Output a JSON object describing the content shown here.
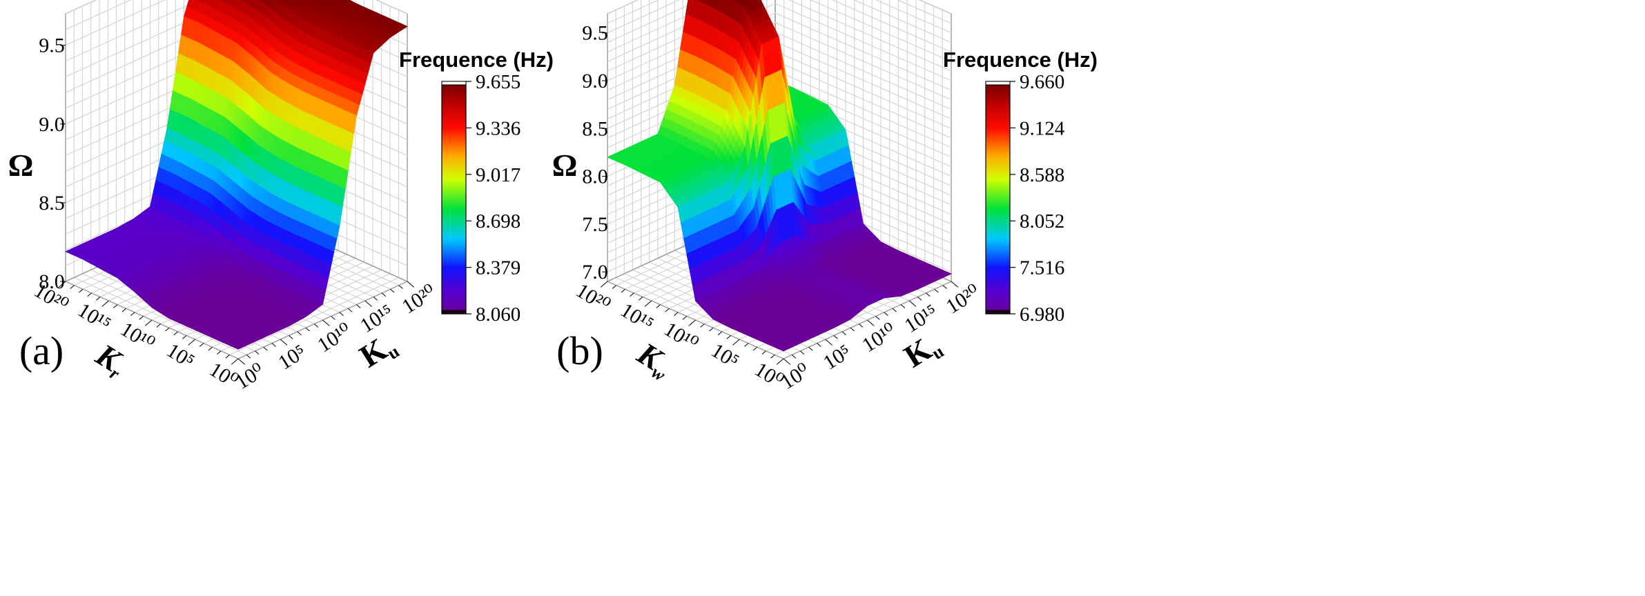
{
  "chart_data": [
    {
      "type": "surface3d",
      "panel_label": "(a)",
      "title": "",
      "colorbar": {
        "title": "Frequence (Hz)",
        "ticks": [
          "9.655",
          "9.336",
          "9.017",
          "8.698",
          "8.379",
          "8.060"
        ],
        "min": 8.06,
        "max": 9.655
      },
      "z_axis": {
        "label": "Ω",
        "ticks": [
          "9.5",
          "9.0",
          "8.5",
          "8.0"
        ],
        "range": [
          8.0,
          9.7
        ]
      },
      "left_axis": {
        "label": "K",
        "subscript": "r",
        "ticks": [
          "10²⁰",
          "10¹⁵",
          "10¹⁰",
          "10⁵",
          "10⁰"
        ]
      },
      "right_axis": {
        "label": "K",
        "subscript": "u",
        "ticks": [
          "10⁰",
          "10⁵",
          "10¹⁰",
          "10¹⁵",
          "10²⁰"
        ]
      },
      "log10_exponents": [
        0,
        2,
        4,
        6,
        8,
        10,
        12,
        14,
        16,
        18,
        20
      ],
      "z_rows_note": "rows = left-axis exponent 0..20, columns = right-axis exponent 0..20",
      "z": [
        [
          8.06,
          8.06,
          8.06,
          8.06,
          8.07,
          8.1,
          8.55,
          9.2,
          9.55,
          9.6,
          9.62
        ],
        [
          8.06,
          8.06,
          8.06,
          8.06,
          8.07,
          8.1,
          8.55,
          9.2,
          9.55,
          9.6,
          9.62
        ],
        [
          8.06,
          8.06,
          8.06,
          8.06,
          8.07,
          8.1,
          8.55,
          9.2,
          9.55,
          9.6,
          9.62
        ],
        [
          8.06,
          8.06,
          8.06,
          8.06,
          8.07,
          8.1,
          8.55,
          9.2,
          9.55,
          9.6,
          9.62
        ],
        [
          8.06,
          8.06,
          8.06,
          8.06,
          8.07,
          8.1,
          8.56,
          9.21,
          9.56,
          9.61,
          9.63
        ],
        [
          8.08,
          8.08,
          8.08,
          8.08,
          8.09,
          8.12,
          8.58,
          9.23,
          9.58,
          9.63,
          9.64
        ],
        [
          8.13,
          8.13,
          8.13,
          8.13,
          8.14,
          8.17,
          8.62,
          9.28,
          9.62,
          9.65,
          9.65
        ],
        [
          8.17,
          8.17,
          8.17,
          8.17,
          8.18,
          8.21,
          8.66,
          9.32,
          9.64,
          9.655,
          9.655
        ],
        [
          8.18,
          8.18,
          8.18,
          8.18,
          8.19,
          8.22,
          8.67,
          9.33,
          9.65,
          9.655,
          9.655
        ],
        [
          8.19,
          8.19,
          8.19,
          8.19,
          8.2,
          8.23,
          8.68,
          9.34,
          9.655,
          9.655,
          9.655
        ],
        [
          8.19,
          8.19,
          8.19,
          8.19,
          8.2,
          8.23,
          8.68,
          9.34,
          9.655,
          9.655,
          9.655
        ]
      ]
    },
    {
      "type": "surface3d",
      "panel_label": "(b)",
      "title": "",
      "colorbar": {
        "title": "Frequence (Hz)",
        "ticks": [
          "9.660",
          "9.124",
          "8.588",
          "8.052",
          "7.516",
          "6.980"
        ],
        "min": 6.98,
        "max": 9.66
      },
      "z_axis": {
        "label": "Ω",
        "ticks": [
          "9.5",
          "9.0",
          "8.5",
          "8.0",
          "7.5",
          "7.0"
        ],
        "range": [
          6.9,
          9.7
        ]
      },
      "left_axis": {
        "label": "K",
        "subscript": "w",
        "ticks": [
          "10²⁰",
          "10¹⁵",
          "10¹⁰",
          "10⁵",
          "10⁰"
        ]
      },
      "right_axis": {
        "label": "K",
        "subscript": "u",
        "ticks": [
          "10⁰",
          "10⁵",
          "10¹⁰",
          "10¹⁵",
          "10²⁰"
        ]
      },
      "log10_exponents": [
        0,
        2,
        4,
        6,
        8,
        10,
        12,
        14,
        16,
        18,
        20
      ],
      "z_rows_note": "rows = left-axis exponent 0..20, columns = right-axis exponent 0..20",
      "z": [
        [
          6.98,
          6.98,
          6.98,
          6.98,
          6.99,
          7.05,
          7.05,
          6.99,
          6.98,
          6.98,
          6.98
        ],
        [
          6.98,
          6.98,
          6.98,
          6.98,
          6.99,
          7.05,
          7.05,
          6.99,
          6.98,
          6.98,
          6.98
        ],
        [
          6.98,
          6.98,
          6.98,
          6.98,
          6.99,
          7.05,
          7.05,
          6.99,
          6.98,
          6.98,
          6.98
        ],
        [
          6.98,
          6.98,
          6.98,
          6.98,
          6.99,
          7.05,
          7.05,
          6.99,
          6.98,
          6.98,
          6.98
        ],
        [
          6.99,
          6.99,
          6.99,
          6.99,
          7.0,
          7.06,
          7.06,
          7.0,
          6.99,
          6.99,
          6.99
        ],
        [
          7.1,
          7.1,
          7.1,
          7.1,
          7.12,
          7.3,
          7.3,
          7.12,
          7.1,
          7.1,
          7.1
        ],
        [
          8.0,
          8.0,
          8.0,
          8.0,
          8.3,
          9.3,
          9.3,
          8.3,
          8.0,
          8.0,
          8.0
        ],
        [
          8.18,
          8.18,
          8.18,
          8.18,
          8.6,
          9.6,
          9.6,
          8.6,
          8.18,
          8.18,
          8.18
        ],
        [
          8.19,
          8.19,
          8.19,
          8.19,
          8.62,
          9.64,
          9.64,
          8.62,
          8.19,
          8.19,
          8.19
        ],
        [
          8.2,
          8.2,
          8.2,
          8.2,
          8.63,
          9.66,
          9.66,
          8.63,
          8.2,
          8.2,
          8.2
        ],
        [
          8.2,
          8.2,
          8.2,
          8.2,
          8.63,
          9.66,
          9.66,
          8.63,
          8.2,
          8.2,
          8.2
        ]
      ]
    }
  ]
}
